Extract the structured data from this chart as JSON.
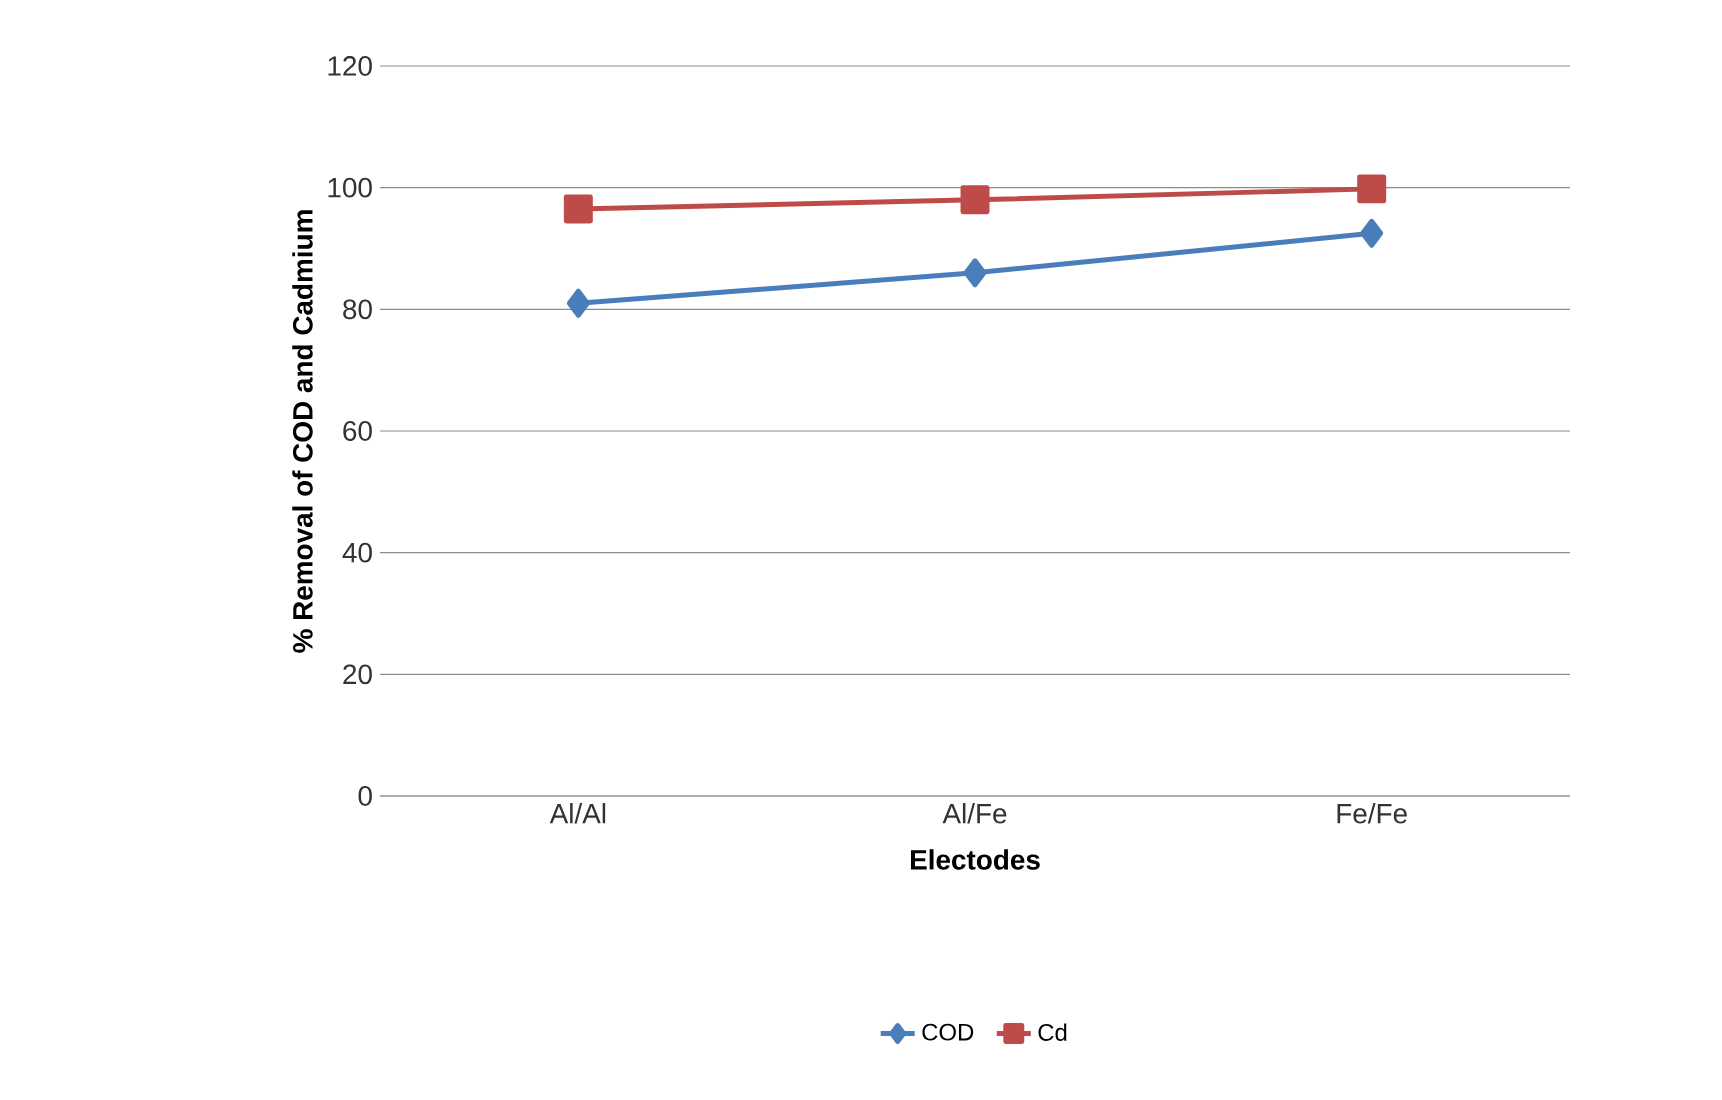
{
  "chart_data": {
    "type": "line",
    "xlabel": "Electodes",
    "ylabel": "% Removal of COD and Cadmium",
    "categories": [
      "Al/Al",
      "Al/Fe",
      "Fe/Fe"
    ],
    "series": [
      {
        "name": "COD",
        "color": "#4a7ebb",
        "marker": "diamond",
        "values": [
          81,
          86,
          92.5
        ]
      },
      {
        "name": "Cd",
        "color": "#be4b48",
        "marker": "square",
        "values": [
          96.5,
          98,
          99.8
        ]
      }
    ],
    "ylim": [
      0,
      120
    ],
    "yticks": [
      0,
      20,
      40,
      60,
      80,
      100,
      120
    ],
    "grid": "y",
    "legend": "bottom"
  }
}
